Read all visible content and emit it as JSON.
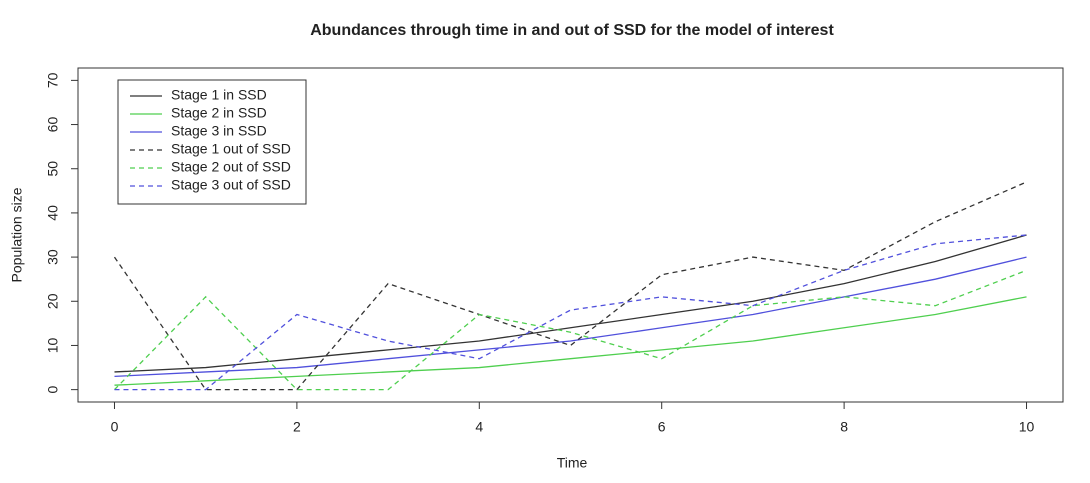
{
  "chart_data": {
    "type": "line",
    "title": "Abundances through time in and out of SSD for the model of interest",
    "x_label": "Time",
    "y_label": "Population size",
    "x": [
      0,
      1,
      2,
      3,
      4,
      5,
      6,
      7,
      8,
      9,
      10
    ],
    "xlim": [
      -0.4,
      10.4
    ],
    "ylim": [
      -2.8,
      72.8
    ],
    "xticks": [
      0,
      2,
      4,
      6,
      8,
      10
    ],
    "yticks": [
      0,
      10,
      20,
      30,
      40,
      50,
      60,
      70
    ],
    "legend_position": "top-left",
    "series": [
      {
        "name": "Stage 1 in SSD",
        "color": "#333333",
        "dashed": false,
        "values": [
          4,
          5,
          7,
          9,
          11,
          14,
          17,
          20,
          24,
          29,
          35
        ]
      },
      {
        "name": "Stage 2 in SSD",
        "color": "#4fcf4f",
        "dashed": false,
        "values": [
          1,
          2,
          3,
          4,
          5,
          7,
          9,
          11,
          14,
          17,
          21
        ]
      },
      {
        "name": "Stage 3 in SSD",
        "color": "#5050dc",
        "dashed": false,
        "values": [
          3,
          4,
          5,
          7,
          9,
          11,
          14,
          17,
          21,
          25,
          30
        ]
      },
      {
        "name": "Stage 1 out of SSD",
        "color": "#333333",
        "dashed": true,
        "values": [
          30,
          0,
          0,
          24,
          17,
          10,
          26,
          30,
          27,
          38,
          47
        ]
      },
      {
        "name": "Stage 2 out of SSD",
        "color": "#4fcf4f",
        "dashed": true,
        "values": [
          0,
          21,
          0,
          0,
          17,
          13,
          7,
          19,
          21,
          19,
          27
        ]
      },
      {
        "name": "Stage 3 out of SSD",
        "color": "#5050dc",
        "dashed": true,
        "values": [
          0,
          0,
          17,
          11,
          7,
          18,
          21,
          19,
          27,
          33,
          35
        ]
      }
    ]
  }
}
